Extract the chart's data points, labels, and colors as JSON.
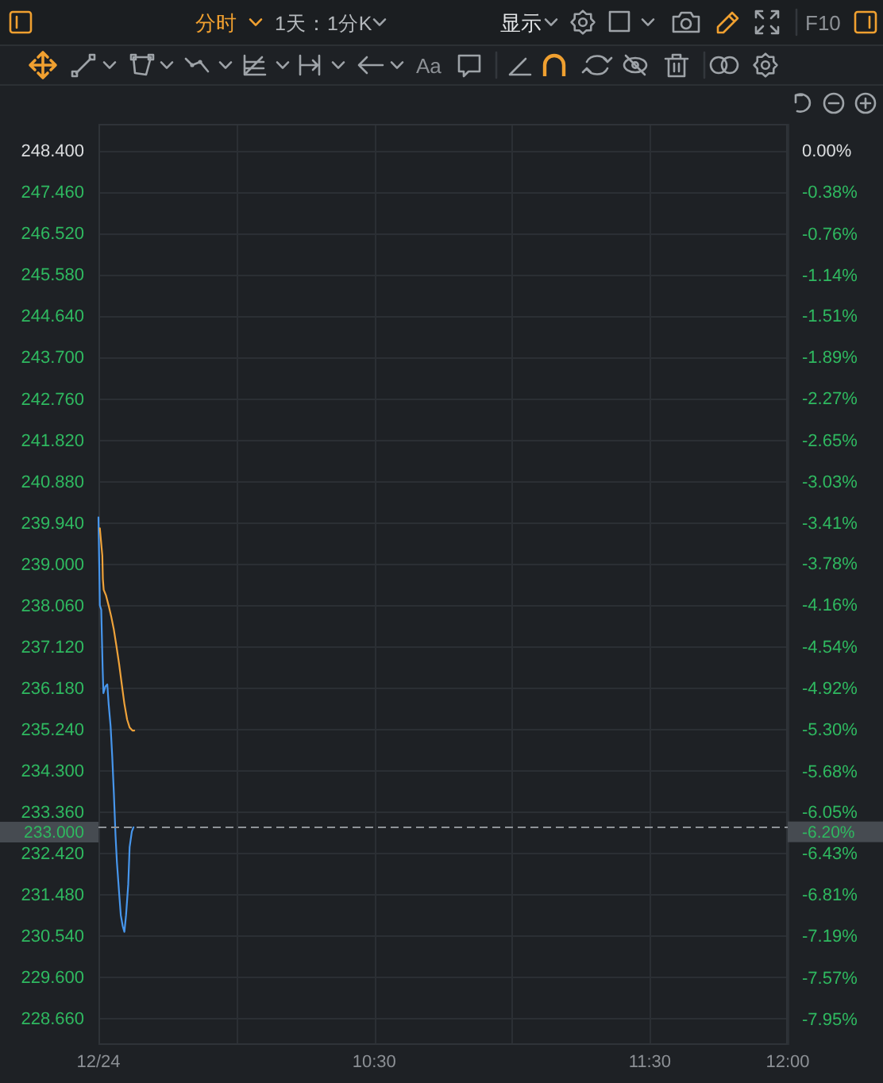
{
  "chart_data": {
    "type": "line",
    "annotations": [
      "分时",
      "1天：1分K",
      "显示",
      "F10",
      "Aa",
      "-6.20%"
    ],
    "series": [
      {
        "color": "#4796ec",
        "x": [
          9.5,
          9.503,
          9.505,
          9.51,
          9.515,
          9.518,
          9.525,
          9.532,
          9.537,
          9.544,
          9.55,
          9.556,
          9.562,
          9.567,
          9.575,
          9.581,
          9.588,
          9.594,
          9.6,
          9.608,
          9.613,
          9.621,
          9.627
        ],
        "values": [
          240.05,
          238.9,
          238.05,
          237.95,
          236.65,
          236.05,
          236.2,
          236.25,
          235.8,
          235.3,
          234.6,
          233.75,
          232.8,
          232.2,
          231.5,
          231.0,
          230.75,
          230.62,
          231.0,
          231.7,
          232.55,
          232.9,
          233.0
        ]
      },
      {
        "color": "#eea23a",
        "x": [
          9.505,
          9.514,
          9.516,
          9.519,
          9.527,
          9.537,
          9.546,
          9.556,
          9.565,
          9.575,
          9.585,
          9.594,
          9.604,
          9.613,
          9.623,
          9.63
        ],
        "values": [
          239.8,
          239.18,
          238.64,
          238.4,
          238.28,
          238.04,
          237.8,
          237.49,
          237.13,
          236.71,
          236.23,
          235.81,
          235.45,
          235.27,
          235.2,
          235.2
        ]
      }
    ],
    "xlim": [
      9.5,
      12.0
    ],
    "xticks": [
      {
        "value": 9.5,
        "label": "12/24"
      },
      {
        "value": 10.0,
        "label": null
      },
      {
        "value": 10.5,
        "label": "10:30"
      },
      {
        "value": 11.0,
        "label": null
      },
      {
        "value": 11.5,
        "label": "11:30"
      },
      {
        "value": 12.0,
        "label": "12:00"
      }
    ],
    "ylim": [
      228.05,
      249.0
    ],
    "yticks": [
      {
        "value": 248.4,
        "label": "248.400"
      },
      {
        "value": 247.46,
        "label": "247.460"
      },
      {
        "value": 246.52,
        "label": "246.520"
      },
      {
        "value": 245.58,
        "label": "245.580"
      },
      {
        "value": 244.64,
        "label": "244.640"
      },
      {
        "value": 243.7,
        "label": "243.700"
      },
      {
        "value": 242.76,
        "label": "242.760"
      },
      {
        "value": 241.82,
        "label": "241.820"
      },
      {
        "value": 240.88,
        "label": "240.880"
      },
      {
        "value": 239.94,
        "label": "239.940"
      },
      {
        "value": 239.0,
        "label": "239.000"
      },
      {
        "value": 238.06,
        "label": "238.060"
      },
      {
        "value": 237.12,
        "label": "237.120"
      },
      {
        "value": 236.18,
        "label": "236.180"
      },
      {
        "value": 235.24,
        "label": "235.240"
      },
      {
        "value": 234.3,
        "label": "234.300"
      },
      {
        "value": 233.36,
        "label": "233.360"
      },
      {
        "value": 232.42,
        "label": "232.420"
      },
      {
        "value": 231.48,
        "label": "231.480"
      },
      {
        "value": 230.54,
        "label": "230.540"
      },
      {
        "value": 229.6,
        "label": "229.600"
      },
      {
        "value": 228.66,
        "label": "228.660"
      }
    ],
    "y2lim": [
      -8.19,
      0.24
    ],
    "y2ticks": [
      {
        "value": 0,
        "label": "0.00%"
      },
      {
        "value": -0.38,
        "label": "-0.38%"
      },
      {
        "value": -0.76,
        "label": "-0.76%"
      },
      {
        "value": -1.14,
        "label": "-1.14%"
      },
      {
        "value": -1.51,
        "label": "-1.51%"
      },
      {
        "value": -1.89,
        "label": "-1.89%"
      },
      {
        "value": -2.27,
        "label": "-2.27%"
      },
      {
        "value": -2.65,
        "label": "-2.65%"
      },
      {
        "value": -3.03,
        "label": "-3.03%"
      },
      {
        "value": -3.41,
        "label": "-3.41%"
      },
      {
        "value": -3.78,
        "label": "-3.78%"
      },
      {
        "value": -4.16,
        "label": "-4.16%"
      },
      {
        "value": -4.54,
        "label": "-4.54%"
      },
      {
        "value": -4.92,
        "label": "-4.92%"
      },
      {
        "value": -5.3,
        "label": "-5.30%"
      },
      {
        "value": -5.68,
        "label": "-5.68%"
      },
      {
        "value": -6.05,
        "label": "-6.05%"
      },
      {
        "value": -6.43,
        "label": "-6.43%"
      },
      {
        "value": -6.81,
        "label": "-6.81%"
      },
      {
        "value": -7.19,
        "label": "-7.19%"
      },
      {
        "value": -7.57,
        "label": "-7.57%"
      },
      {
        "value": -7.95,
        "label": "-7.95%"
      }
    ],
    "grid": true,
    "line_style": "solid",
    "ref_lines": [
      {
        "axis": "y",
        "value": 233.0,
        "label": "233.000",
        "color": "#8f9398",
        "line_style": "dashed"
      }
    ]
  }
}
